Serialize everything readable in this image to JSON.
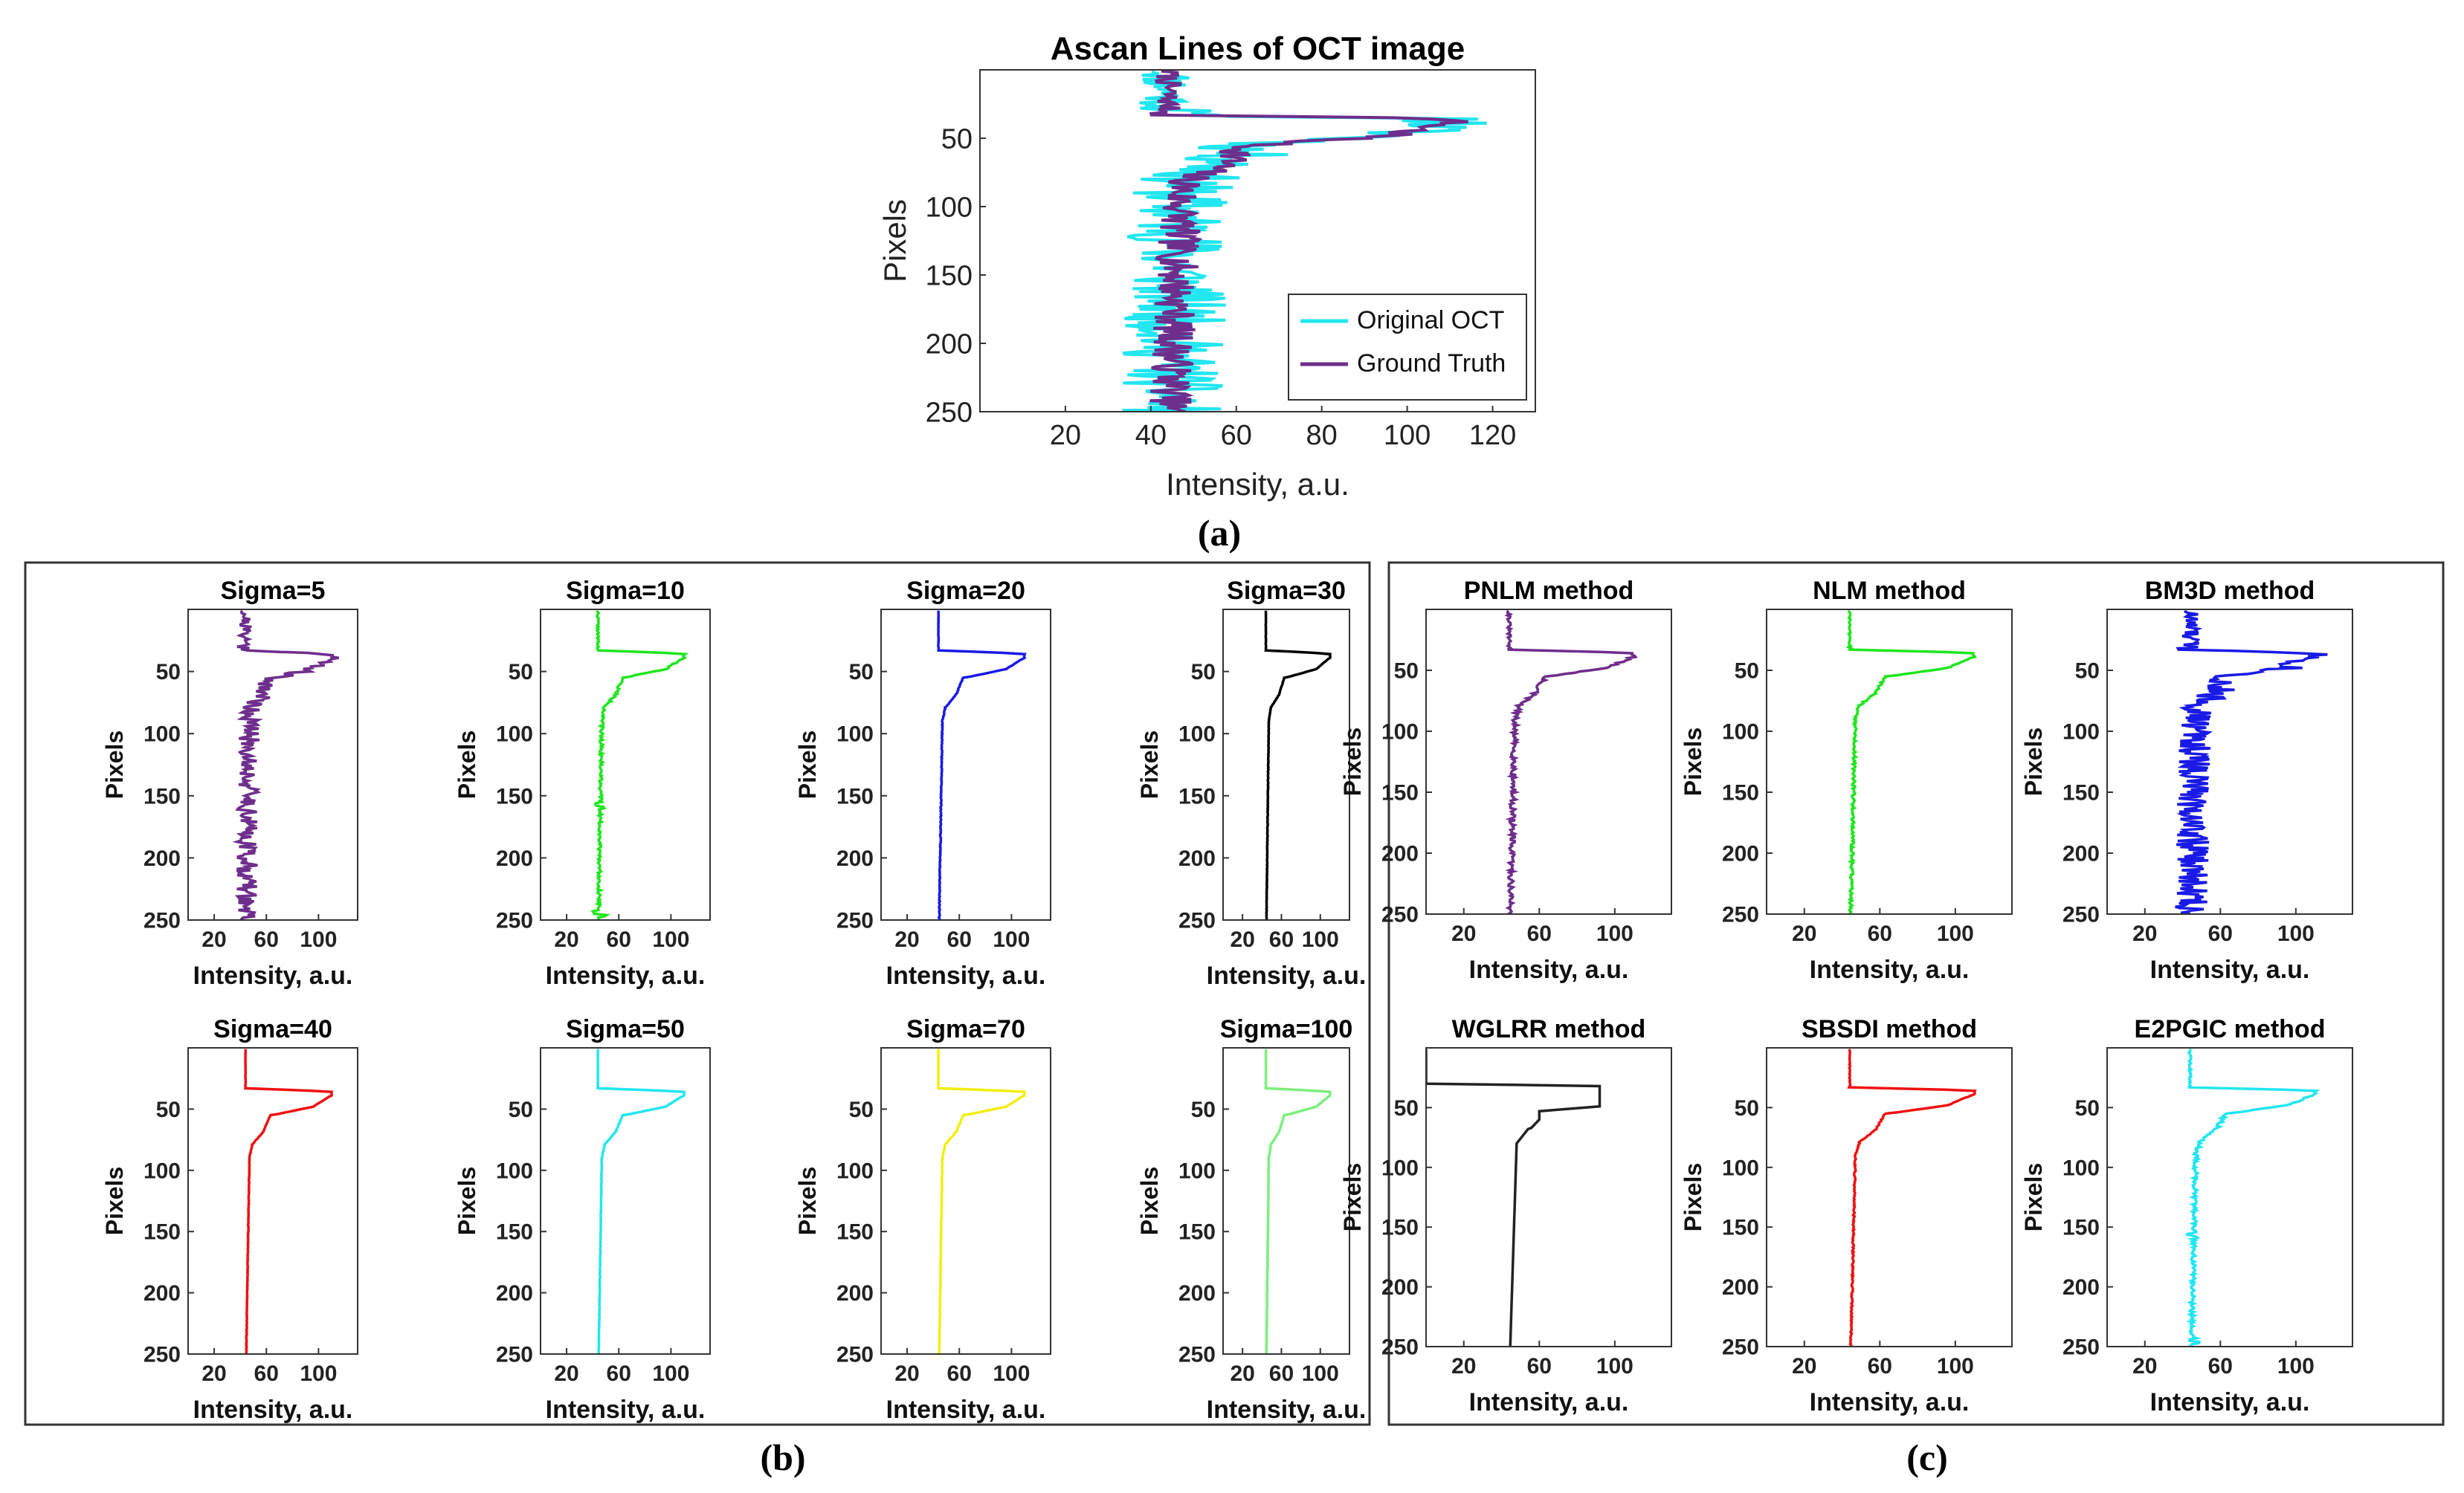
{
  "figure": {
    "panel_labels": [
      "(a)",
      "(b)",
      "(c)"
    ],
    "legend": [
      "Original OCT",
      "Ground Truth"
    ]
  },
  "chart_data": [
    {
      "id": "a",
      "type": "line",
      "panel": "(a)",
      "title": "Ascan Lines of OCT image",
      "xlabel": "Intensity, a.u.",
      "ylabel": "Pixels",
      "xlim": [
        0,
        130
      ],
      "ylim": [
        0,
        250
      ],
      "y_reversed": true,
      "xticks": [
        20,
        40,
        60,
        80,
        100,
        120
      ],
      "yticks": [
        50,
        100,
        150,
        200,
        250
      ],
      "legend": "bottom-right",
      "series": [
        {
          "name": "Original OCT",
          "color": "#22e6f0",
          "noise": 12,
          "seed": 11
        },
        {
          "name": "Ground Truth",
          "color": "#6e2e8c",
          "noise": 5,
          "seed": 7
        }
      ]
    },
    {
      "id": "b1",
      "type": "line",
      "panel": "(b)",
      "title": "Sigma=5",
      "xlabel": "Intensity, a.u.",
      "ylabel": "Pixels",
      "xlim": [
        0,
        130
      ],
      "ylim": [
        0,
        250
      ],
      "y_reversed": true,
      "xticks": [
        20,
        60,
        100
      ],
      "yticks": [
        50,
        100,
        150,
        200,
        250
      ],
      "series": [
        {
          "name": "Sigma=5",
          "color": "#6e2e8c",
          "noise": 8,
          "seed": 21
        }
      ]
    },
    {
      "id": "b2",
      "type": "line",
      "panel": "(b)",
      "title": "Sigma=10",
      "xlabel": "Intensity, a.u.",
      "ylabel": "Pixels",
      "xlim": [
        0,
        130
      ],
      "ylim": [
        0,
        250
      ],
      "y_reversed": true,
      "xticks": [
        20,
        60,
        100
      ],
      "yticks": [
        50,
        100,
        150,
        200,
        250
      ],
      "series": [
        {
          "name": "Sigma=10",
          "color": "#1ee61e",
          "noise": 1.2,
          "seed": 22,
          "bumps": true
        }
      ]
    },
    {
      "id": "b3",
      "type": "line",
      "panel": "(b)",
      "title": "Sigma=20",
      "xlabel": "Intensity, a.u.",
      "ylabel": "Pixels",
      "xlim": [
        0,
        130
      ],
      "ylim": [
        0,
        250
      ],
      "y_reversed": true,
      "xticks": [
        20,
        60,
        100
      ],
      "yticks": [
        50,
        100,
        150,
        200,
        250
      ],
      "series": [
        {
          "name": "Sigma=20",
          "color": "#1a1ae6",
          "noise": 0.3,
          "seed": 23
        }
      ]
    },
    {
      "id": "b4",
      "type": "line",
      "panel": "(b)",
      "title": "Sigma=30",
      "xlabel": "Intensity, a.u.",
      "ylabel": "Pixels",
      "xlim": [
        0,
        130
      ],
      "ylim": [
        0,
        250
      ],
      "y_reversed": true,
      "xticks": [
        20,
        60,
        100
      ],
      "yticks": [
        50,
        100,
        150,
        200,
        250
      ],
      "series": [
        {
          "name": "Sigma=30",
          "color": "#000000",
          "noise": 0.2,
          "seed": 24
        }
      ]
    },
    {
      "id": "b5",
      "type": "line",
      "panel": "(b)",
      "title": "Sigma=40",
      "xlabel": "Intensity, a.u.",
      "ylabel": "Pixels",
      "xlim": [
        0,
        130
      ],
      "ylim": [
        0,
        250
      ],
      "y_reversed": true,
      "xticks": [
        20,
        60,
        100
      ],
      "yticks": [
        50,
        100,
        150,
        200,
        250
      ],
      "series": [
        {
          "name": "Sigma=40",
          "color": "#ee1111",
          "noise": 0.2,
          "seed": 25
        }
      ]
    },
    {
      "id": "b6",
      "type": "line",
      "panel": "(b)",
      "title": "Sigma=50",
      "xlabel": "Intensity, a.u.",
      "ylabel": "Pixels",
      "xlim": [
        0,
        130
      ],
      "ylim": [
        0,
        250
      ],
      "y_reversed": true,
      "xticks": [
        20,
        60,
        100
      ],
      "yticks": [
        50,
        100,
        150,
        200,
        250
      ],
      "series": [
        {
          "name": "Sigma=50",
          "color": "#22e6f0",
          "noise": 0.2,
          "seed": 26
        }
      ]
    },
    {
      "id": "b7",
      "type": "line",
      "panel": "(b)",
      "title": "Sigma=70",
      "xlabel": "Intensity, a.u.",
      "ylabel": "Pixels",
      "xlim": [
        0,
        130
      ],
      "ylim": [
        0,
        250
      ],
      "y_reversed": true,
      "xticks": [
        20,
        60,
        100
      ],
      "yticks": [
        50,
        100,
        150,
        200,
        250
      ],
      "series": [
        {
          "name": "Sigma=70",
          "color": "#f2ee10",
          "noise": 0.2,
          "seed": 27
        }
      ]
    },
    {
      "id": "b8",
      "type": "line",
      "panel": "(b)",
      "title": "Sigma=100",
      "xlabel": "Intensity, a.u.",
      "ylabel": "Pixels",
      "xlim": [
        0,
        130
      ],
      "ylim": [
        0,
        250
      ],
      "y_reversed": true,
      "xticks": [
        20,
        60,
        100
      ],
      "yticks": [
        50,
        100,
        150,
        200,
        250
      ],
      "series": [
        {
          "name": "Sigma=100",
          "color": "#7cee7c",
          "noise": 0.2,
          "seed": 28
        }
      ]
    },
    {
      "id": "c1",
      "type": "line",
      "panel": "(c)",
      "title": "PNLM method",
      "xlabel": "Intensity, a.u.",
      "ylabel": "Pixels",
      "xlim": [
        0,
        130
      ],
      "ylim": [
        0,
        250
      ],
      "y_reversed": true,
      "xticks": [
        20,
        60,
        100
      ],
      "yticks": [
        50,
        100,
        150,
        200,
        250
      ],
      "series": [
        {
          "name": "PNLM method",
          "color": "#6e2e8c",
          "noise": 1.5,
          "seed": 31
        }
      ]
    },
    {
      "id": "c2",
      "type": "line",
      "panel": "(c)",
      "title": "NLM method",
      "xlabel": "Intensity, a.u.",
      "ylabel": "Pixels",
      "xlim": [
        0,
        130
      ],
      "ylim": [
        0,
        250
      ],
      "y_reversed": true,
      "xticks": [
        20,
        60,
        100
      ],
      "yticks": [
        50,
        100,
        150,
        200,
        250
      ],
      "series": [
        {
          "name": "NLM method",
          "color": "#1ee61e",
          "noise": 0.8,
          "seed": 32
        }
      ]
    },
    {
      "id": "c3",
      "type": "line",
      "panel": "(c)",
      "title": "BM3D method",
      "xlabel": "Intensity, a.u.",
      "ylabel": "Pixels",
      "xlim": [
        0,
        130
      ],
      "ylim": [
        0,
        250
      ],
      "y_reversed": true,
      "xticks": [
        20,
        60,
        100
      ],
      "yticks": [
        50,
        100,
        150,
        200,
        250
      ],
      "series": [
        {
          "name": "BM3D method",
          "color": "#1a1ae6",
          "noise": 9,
          "seed": 33
        }
      ]
    },
    {
      "id": "c4",
      "type": "line",
      "panel": "(c)",
      "title": "WGLRR method",
      "xlabel": "Intensity, a.u.",
      "ylabel": "Pixels",
      "xlim": [
        0,
        130
      ],
      "ylim": [
        0,
        250
      ],
      "y_reversed": true,
      "xticks": [
        20,
        60,
        100
      ],
      "yticks": [
        50,
        100,
        150,
        200,
        250
      ],
      "series": [
        {
          "name": "WGLRR method",
          "color": "#222222",
          "noise": 0,
          "seed": 34,
          "shape": "wglrr"
        }
      ]
    },
    {
      "id": "c5",
      "type": "line",
      "panel": "(c)",
      "title": "SBSDI method",
      "xlabel": "Intensity, a.u.",
      "ylabel": "Pixels",
      "xlim": [
        0,
        130
      ],
      "ylim": [
        0,
        250
      ],
      "y_reversed": true,
      "xticks": [
        20,
        60,
        100
      ],
      "yticks": [
        50,
        100,
        150,
        200,
        250
      ],
      "series": [
        {
          "name": "SBSDI method",
          "color": "#ee1111",
          "noise": 0.4,
          "seed": 35
        }
      ]
    },
    {
      "id": "c6",
      "type": "line",
      "panel": "(c)",
      "title": "E2PGIC method",
      "xlabel": "Intensity, a.u.",
      "ylabel": "Pixels",
      "xlim": [
        0,
        130
      ],
      "ylim": [
        0,
        250
      ],
      "y_reversed": true,
      "xticks": [
        20,
        60,
        100
      ],
      "yticks": [
        50,
        100,
        150,
        200,
        250
      ],
      "series": [
        {
          "name": "E2PGIC method",
          "color": "#22e6f0",
          "noise": 1.2,
          "seed": 36,
          "bumps": true
        }
      ]
    }
  ]
}
